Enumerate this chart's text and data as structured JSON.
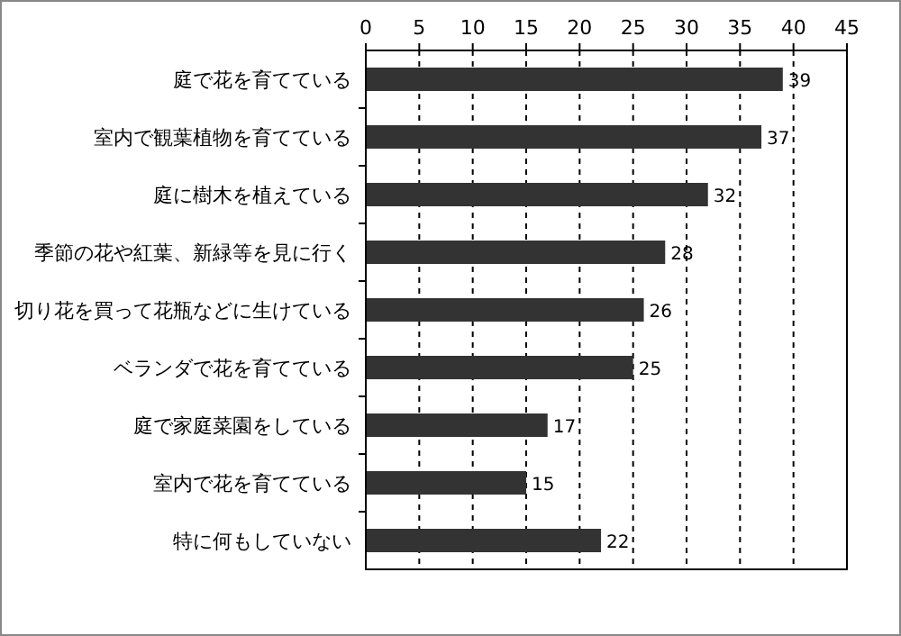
{
  "chart_data": {
    "type": "bar",
    "orientation": "horizontal",
    "categories": [
      "庭で花を育てている",
      "室内で観葉植物を育てている",
      "庭に樹木を植えている",
      "季節の花や紅葉、新緑等を見に行く",
      "切り花を買って花瓶などに生けている",
      "ベランダで花を育てている",
      "庭で家庭菜園をしている",
      "室内で花を育てている",
      "特に何もしていない"
    ],
    "values": [
      39,
      37,
      32,
      28,
      26,
      25,
      17,
      15,
      22
    ],
    "color": "#333333",
    "xlim": [
      0,
      45
    ],
    "xticks": [
      0,
      5,
      10,
      15,
      20,
      25,
      30,
      35,
      40,
      45
    ],
    "grid": "x",
    "data_labels": true
  }
}
